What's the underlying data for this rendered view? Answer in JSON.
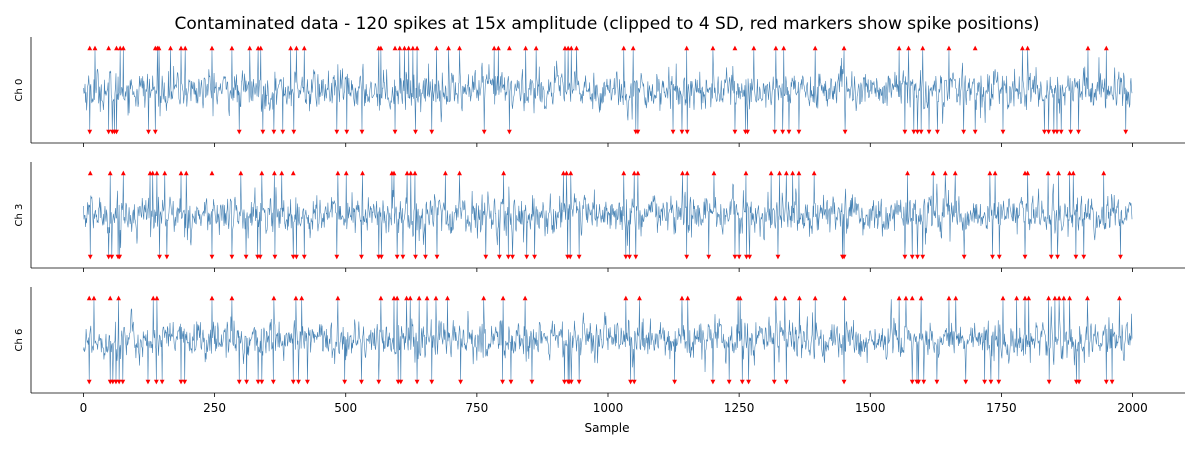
{
  "chart_data": {
    "type": "line",
    "title": "Contaminated data - 120 spikes at 15x amplitude (clipped to 4 SD, red markers show spike positions)",
    "xlabel": "Sample",
    "xlim": [
      -100,
      2100
    ],
    "xticks": [
      0,
      250,
      500,
      750,
      1000,
      1250,
      1500,
      1750,
      2000
    ],
    "n_samples": 2000,
    "ylim": [
      -5.2,
      5.2
    ],
    "clip_sd": 4,
    "grid": false,
    "colors": {
      "line": "#4682b4",
      "marker": "#ff0000"
    },
    "panels": [
      {
        "label": "Ch 0",
        "spikes_up": [
          12,
          22,
          48,
          63,
          70,
          76,
          137,
          141,
          144,
          166,
          186,
          194,
          245,
          283,
          317,
          333,
          338,
          395,
          406,
          421,
          563,
          567,
          594,
          603,
          612,
          620,
          628,
          636,
          673,
          696,
          717,
          783,
          791,
          812,
          843,
          863,
          918,
          924,
          930,
          940,
          1030,
          1048,
          1150,
          1200,
          1242,
          1278,
          1320,
          1335,
          1395,
          1450,
          1555,
          1573,
          1600,
          1650,
          1700,
          1790,
          1800,
          1915,
          1950
        ],
        "spikes_down": [
          12,
          48,
          55,
          59,
          63,
          124,
          137,
          297,
          342,
          363,
          380,
          401,
          483,
          502,
          531,
          594,
          633,
          664,
          764,
          812,
          1053,
          1057,
          1124,
          1141,
          1151,
          1242,
          1262,
          1266,
          1318,
          1333,
          1345,
          1364,
          1452,
          1566,
          1583,
          1590,
          1597,
          1612,
          1628,
          1678,
          1700,
          1753,
          1832,
          1840,
          1850,
          1856,
          1864,
          1882,
          1897,
          1987
        ]
      },
      {
        "label": "Ch 3",
        "spikes_up": [
          13,
          51,
          76,
          127,
          132,
          140,
          155,
          186,
          196,
          245,
          300,
          340,
          364,
          378,
          400,
          485,
          501,
          532,
          588,
          592,
          617,
          624,
          632,
          690,
          717,
          801,
          915,
          921,
          929,
          1030,
          1050,
          1057,
          1142,
          1151,
          1202,
          1263,
          1311,
          1327,
          1340,
          1352,
          1364,
          1393,
          1571,
          1620,
          1643,
          1662,
          1728,
          1738,
          1795,
          1800,
          1839,
          1859,
          1880,
          1887,
          1945
        ],
        "spikes_down": [
          13,
          48,
          54,
          66,
          69,
          145,
          159,
          245,
          283,
          310,
          332,
          337,
          365,
          400,
          406,
          421,
          483,
          530,
          563,
          568,
          598,
          609,
          633,
          652,
          674,
          767,
          793,
          810,
          818,
          845,
          860,
          923,
          928,
          945,
          1034,
          1041,
          1053,
          1150,
          1192,
          1242,
          1250,
          1264,
          1270,
          1324,
          1447,
          1450,
          1566,
          1580,
          1590,
          1600,
          1679,
          1733,
          1746,
          1795,
          1845,
          1857,
          1892,
          1907,
          1977
        ]
      },
      {
        "label": "Ch 6",
        "spikes_up": [
          11,
          20,
          51,
          67,
          133,
          140,
          245,
          283,
          363,
          405,
          416,
          485,
          567,
          592,
          598,
          616,
          623,
          640,
          655,
          672,
          694,
          763,
          800,
          842,
          1034,
          1060,
          1141,
          1152,
          1248,
          1252,
          1320,
          1337,
          1365,
          1395,
          1451,
          1555,
          1568,
          1580,
          1597,
          1650,
          1663,
          1753,
          1779,
          1795,
          1802,
          1840,
          1852,
          1860,
          1869,
          1880,
          1914,
          1975
        ],
        "spikes_down": [
          11,
          51,
          56,
          62,
          68,
          75,
          123,
          139,
          150,
          186,
          193,
          297,
          311,
          333,
          340,
          362,
          400,
          410,
          427,
          498,
          530,
          563,
          600,
          605,
          636,
          664,
          719,
          799,
          815,
          855,
          917,
          924,
          926,
          930,
          945,
          1043,
          1050,
          1127,
          1200,
          1231,
          1256,
          1268,
          1317,
          1340,
          1450,
          1580,
          1589,
          1592,
          1602,
          1627,
          1682,
          1718,
          1730,
          1745,
          1841,
          1893,
          1898,
          1950,
          1961
        ]
      }
    ]
  }
}
